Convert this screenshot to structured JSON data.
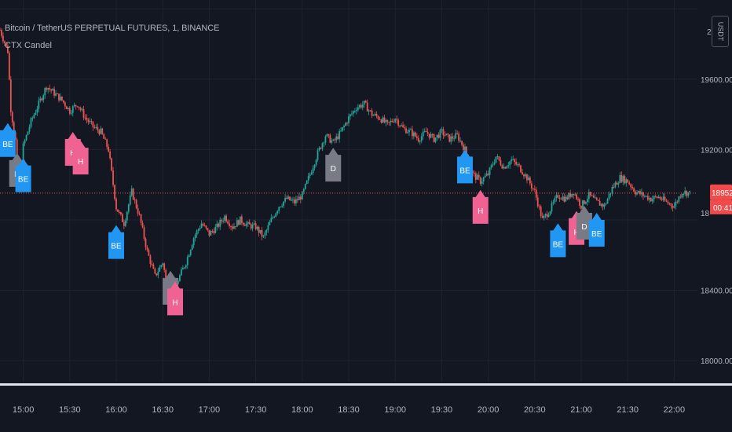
{
  "header": {
    "symbol": "Bitcoin / TetherUS PERPETUAL FUTURES, 1, BINANCE",
    "indicator": "CTX Candel",
    "currency_toggle": "USDT"
  },
  "colors": {
    "background": "#131722",
    "grid": "#1f2330",
    "up": "#26a69a",
    "down": "#ef5350",
    "label_be": "#2196f3",
    "label_h": "#f06292",
    "label_d": "#787b86",
    "price_line": "#ef5350"
  },
  "chart_data": {
    "type": "candlestick",
    "ylim": [
      17880,
      20050
    ],
    "x_time_range": [
      "14:45",
      "22:15"
    ],
    "y_ticks": [
      "19600.00",
      "19200.00",
      "18400.00",
      "18000.00"
    ],
    "x_ticks": [
      "15:00",
      "15:30",
      "16:00",
      "16:30",
      "17:00",
      "17:30",
      "18:00",
      "18:30",
      "19:00",
      "19:30",
      "20:00",
      "20:30",
      "21:00",
      "21:30",
      "22:00"
    ],
    "last_price": 18952.36,
    "last_price_label": "18952.36",
    "countdown_label": "00:41",
    "right_edge_partial_label": "18",
    "top_right_partial_label": "2",
    "close_path": [
      [
        "14:45",
        19880
      ],
      [
        "14:50",
        19760
      ],
      [
        "14:52",
        19430
      ],
      [
        "14:55",
        19250
      ],
      [
        "14:57",
        18960
      ],
      [
        "15:00",
        19220
      ],
      [
        "15:05",
        19360
      ],
      [
        "15:10",
        19460
      ],
      [
        "15:15",
        19560
      ],
      [
        "15:20",
        19520
      ],
      [
        "15:25",
        19480
      ],
      [
        "15:30",
        19420
      ],
      [
        "15:35",
        19460
      ],
      [
        "15:40",
        19380
      ],
      [
        "15:45",
        19330
      ],
      [
        "15:50",
        19300
      ],
      [
        "15:55",
        19200
      ],
      [
        "16:00",
        18870
      ],
      [
        "16:05",
        18780
      ],
      [
        "16:10",
        18960
      ],
      [
        "16:15",
        18820
      ],
      [
        "16:20",
        18620
      ],
      [
        "16:25",
        18480
      ],
      [
        "16:30",
        18560
      ],
      [
        "16:35",
        18320
      ],
      [
        "16:40",
        18460
      ],
      [
        "16:45",
        18560
      ],
      [
        "16:50",
        18700
      ],
      [
        "16:55",
        18780
      ],
      [
        "17:00",
        18720
      ],
      [
        "17:05",
        18760
      ],
      [
        "17:10",
        18820
      ],
      [
        "17:15",
        18760
      ],
      [
        "17:20",
        18800
      ],
      [
        "17:25",
        18770
      ],
      [
        "17:30",
        18760
      ],
      [
        "17:35",
        18700
      ],
      [
        "17:40",
        18800
      ],
      [
        "17:45",
        18880
      ],
      [
        "17:50",
        18920
      ],
      [
        "17:55",
        18900
      ],
      [
        "18:00",
        18940
      ],
      [
        "18:05",
        19060
      ],
      [
        "18:10",
        19180
      ],
      [
        "18:15",
        19280
      ],
      [
        "18:20",
        19240
      ],
      [
        "18:25",
        19300
      ],
      [
        "18:30",
        19380
      ],
      [
        "18:35",
        19440
      ],
      [
        "18:40",
        19460
      ],
      [
        "18:45",
        19400
      ],
      [
        "18:50",
        19380
      ],
      [
        "18:55",
        19340
      ],
      [
        "19:00",
        19380
      ],
      [
        "19:05",
        19320
      ],
      [
        "19:10",
        19300
      ],
      [
        "19:15",
        19260
      ],
      [
        "19:20",
        19300
      ],
      [
        "19:25",
        19260
      ],
      [
        "19:30",
        19300
      ],
      [
        "19:35",
        19260
      ],
      [
        "19:40",
        19280
      ],
      [
        "19:45",
        19200
      ],
      [
        "19:50",
        19060
      ],
      [
        "19:55",
        19020
      ],
      [
        "20:00",
        19060
      ],
      [
        "20:05",
        19160
      ],
      [
        "20:10",
        19100
      ],
      [
        "20:15",
        19140
      ],
      [
        "20:20",
        19100
      ],
      [
        "20:25",
        19040
      ],
      [
        "20:30",
        18960
      ],
      [
        "20:35",
        18800
      ],
      [
        "20:40",
        18860
      ],
      [
        "20:45",
        18940
      ],
      [
        "20:50",
        18920
      ],
      [
        "20:55",
        18960
      ],
      [
        "21:00",
        18880
      ],
      [
        "21:05",
        18940
      ],
      [
        "21:10",
        18900
      ],
      [
        "21:15",
        18880
      ],
      [
        "21:20",
        18980
      ],
      [
        "21:25",
        19040
      ],
      [
        "21:30",
        19020
      ],
      [
        "21:35",
        18960
      ],
      [
        "21:40",
        18940
      ],
      [
        "21:45",
        18920
      ],
      [
        "21:50",
        18930
      ],
      [
        "21:55",
        18900
      ],
      [
        "22:00",
        18880
      ],
      [
        "22:05",
        18960
      ],
      [
        "22:10",
        18952
      ]
    ],
    "signals": [
      {
        "type": "BE",
        "time": "14:50",
        "price": 19350
      },
      {
        "type": "D",
        "time": "14:56",
        "price": 19180
      },
      {
        "type": "BE",
        "time": "15:00",
        "price": 19150
      },
      {
        "type": "H",
        "time": "15:32",
        "price": 19300
      },
      {
        "type": "H",
        "time": "15:37",
        "price": 19250
      },
      {
        "type": "BE",
        "time": "16:00",
        "price": 18770
      },
      {
        "type": "D",
        "time": "16:35",
        "price": 18510
      },
      {
        "type": "H",
        "time": "16:38",
        "price": 18450
      },
      {
        "type": "D",
        "time": "18:20",
        "price": 19210
      },
      {
        "type": "BE",
        "time": "19:45",
        "price": 19200
      },
      {
        "type": "H",
        "time": "19:55",
        "price": 18970
      },
      {
        "type": "BE",
        "time": "20:45",
        "price": 18780
      },
      {
        "type": "H",
        "time": "20:57",
        "price": 18850
      },
      {
        "type": "D",
        "time": "21:02",
        "price": 18880
      },
      {
        "type": "BE",
        "time": "21:10",
        "price": 18840
      }
    ]
  }
}
